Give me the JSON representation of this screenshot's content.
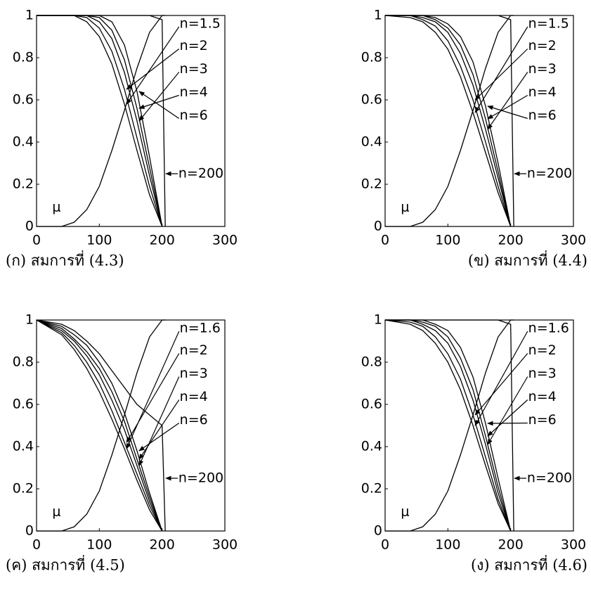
{
  "chart_data": [
    {
      "type": "line",
      "caption": "(ก) สมการที่ (4.3)",
      "xlim": [
        0,
        300
      ],
      "ylim": [
        0,
        1
      ],
      "xticks": [
        0,
        100,
        200,
        300
      ],
      "yticks": [
        0,
        0.2,
        0.4,
        0.6,
        0.8,
        1
      ],
      "x": [
        0,
        40,
        60,
        80,
        100,
        120,
        140,
        160,
        180,
        200,
        205
      ],
      "series": [
        {
          "name": "n=1.5",
          "color": "#000000",
          "values": [
            1,
            1,
            1,
            0.97,
            0.9,
            0.77,
            0.58,
            0.36,
            0.15,
            0,
            null
          ]
        },
        {
          "name": "n=2",
          "color": "#000000",
          "values": [
            1,
            1,
            1,
            0.99,
            0.94,
            0.83,
            0.65,
            0.42,
            0.19,
            0,
            null
          ]
        },
        {
          "name": "n=3",
          "color": "#000000",
          "values": [
            1,
            1,
            1,
            1,
            0.97,
            0.89,
            0.73,
            0.5,
            0.24,
            0,
            null
          ]
        },
        {
          "name": "n=4",
          "color": "#000000",
          "values": [
            1,
            1,
            1,
            1,
            0.99,
            0.93,
            0.79,
            0.56,
            0.28,
            0,
            null
          ]
        },
        {
          "name": "n=6",
          "color": "#000000",
          "values": [
            1,
            1,
            1,
            1,
            1,
            0.97,
            0.86,
            0.64,
            0.33,
            0,
            null
          ]
        },
        {
          "name": "n=200",
          "color": "#000000",
          "values": [
            1,
            1,
            1,
            1,
            1,
            1,
            1,
            1,
            1,
            0.98,
            0
          ]
        },
        {
          "name": "μ",
          "color": "#000000",
          "values": [
            0,
            0,
            0.02,
            0.08,
            0.19,
            0.36,
            0.55,
            0.75,
            0.92,
            1,
            1
          ]
        }
      ]
    },
    {
      "type": "line",
      "caption": "(ข) สมการที่ (4.4)",
      "xlim": [
        0,
        300
      ],
      "ylim": [
        0,
        1
      ],
      "xticks": [
        0,
        100,
        200,
        300
      ],
      "yticks": [
        0,
        0.2,
        0.4,
        0.6,
        0.8,
        1
      ],
      "x": [
        0,
        40,
        60,
        80,
        100,
        120,
        140,
        160,
        180,
        200,
        205
      ],
      "series": [
        {
          "name": "n=1.5",
          "color": "#000000",
          "values": [
            1,
            0.99,
            0.97,
            0.92,
            0.84,
            0.71,
            0.54,
            0.35,
            0.16,
            0,
            null
          ]
        },
        {
          "name": "n=2",
          "color": "#000000",
          "values": [
            1,
            1,
            0.98,
            0.95,
            0.88,
            0.76,
            0.6,
            0.4,
            0.19,
            0,
            null
          ]
        },
        {
          "name": "n=3",
          "color": "#000000",
          "values": [
            1,
            1,
            0.99,
            0.97,
            0.92,
            0.82,
            0.67,
            0.46,
            0.23,
            0,
            null
          ]
        },
        {
          "name": "n=4",
          "color": "#000000",
          "values": [
            1,
            1,
            1,
            0.98,
            0.94,
            0.86,
            0.72,
            0.51,
            0.26,
            0,
            null
          ]
        },
        {
          "name": "n=6",
          "color": "#000000",
          "values": [
            1,
            1,
            1,
            0.99,
            0.96,
            0.9,
            0.78,
            0.57,
            0.3,
            0,
            null
          ]
        },
        {
          "name": "n=200",
          "color": "#000000",
          "values": [
            1,
            1,
            1,
            1,
            1,
            1,
            1,
            1,
            1,
            0.98,
            0
          ]
        },
        {
          "name": "μ",
          "color": "#000000",
          "values": [
            0,
            0,
            0.02,
            0.08,
            0.19,
            0.36,
            0.55,
            0.75,
            0.92,
            1,
            1
          ]
        }
      ]
    },
    {
      "type": "line",
      "caption": "(ค) สมการที่ (4.5)",
      "xlim": [
        0,
        300
      ],
      "ylim": [
        0,
        1
      ],
      "xticks": [
        0,
        100,
        200,
        300
      ],
      "yticks": [
        0,
        0.2,
        0.4,
        0.6,
        0.8,
        1
      ],
      "x": [
        0,
        40,
        60,
        80,
        100,
        120,
        140,
        160,
        180,
        200,
        205
      ],
      "series": [
        {
          "name": "n=1.6",
          "color": "#000000",
          "values": [
            1,
            0.93,
            0.86,
            0.77,
            0.66,
            0.53,
            0.39,
            0.24,
            0.1,
            0,
            null
          ]
        },
        {
          "name": "n=2",
          "color": "#000000",
          "values": [
            1,
            0.94,
            0.88,
            0.8,
            0.7,
            0.57,
            0.42,
            0.27,
            0.12,
            0,
            null
          ]
        },
        {
          "name": "n=3",
          "color": "#000000",
          "values": [
            1,
            0.95,
            0.9,
            0.83,
            0.74,
            0.62,
            0.48,
            0.31,
            0.14,
            0,
            null
          ]
        },
        {
          "name": "n=4",
          "color": "#000000",
          "values": [
            1,
            0.96,
            0.91,
            0.85,
            0.77,
            0.66,
            0.52,
            0.34,
            0.16,
            0,
            null
          ]
        },
        {
          "name": "n=6",
          "color": "#000000",
          "values": [
            1,
            0.97,
            0.93,
            0.88,
            0.8,
            0.7,
            0.56,
            0.38,
            0.18,
            0,
            null
          ]
        },
        {
          "name": "n=200",
          "color": "#000000",
          "values": [
            1,
            0.98,
            0.95,
            0.9,
            0.84,
            0.76,
            0.68,
            0.6,
            0.55,
            0.5,
            0
          ]
        },
        {
          "name": "μ",
          "color": "#000000",
          "values": [
            0,
            0,
            0.02,
            0.08,
            0.19,
            0.36,
            0.55,
            0.75,
            0.92,
            1,
            1
          ]
        }
      ]
    },
    {
      "type": "line",
      "caption": "(ง) สมการที่ (4.6)",
      "xlim": [
        0,
        300
      ],
      "ylim": [
        0,
        1
      ],
      "xticks": [
        0,
        100,
        200,
        300
      ],
      "yticks": [
        0,
        0.2,
        0.4,
        0.6,
        0.8,
        1
      ],
      "x": [
        0,
        40,
        60,
        80,
        100,
        120,
        140,
        160,
        180,
        200,
        205
      ],
      "series": [
        {
          "name": "n=1.6",
          "color": "#000000",
          "values": [
            1,
            0.98,
            0.95,
            0.89,
            0.8,
            0.67,
            0.5,
            0.31,
            0.13,
            0,
            null
          ]
        },
        {
          "name": "n=2",
          "color": "#000000",
          "values": [
            1,
            0.99,
            0.97,
            0.92,
            0.84,
            0.72,
            0.55,
            0.35,
            0.15,
            0,
            null
          ]
        },
        {
          "name": "n=3",
          "color": "#000000",
          "values": [
            1,
            1,
            0.98,
            0.95,
            0.89,
            0.78,
            0.62,
            0.41,
            0.18,
            0,
            null
          ]
        },
        {
          "name": "n=4",
          "color": "#000000",
          "values": [
            1,
            1,
            0.99,
            0.97,
            0.92,
            0.82,
            0.67,
            0.45,
            0.21,
            0,
            null
          ]
        },
        {
          "name": "n=6",
          "color": "#000000",
          "values": [
            1,
            1,
            1,
            0.98,
            0.95,
            0.87,
            0.73,
            0.51,
            0.25,
            0,
            null
          ]
        },
        {
          "name": "n=200",
          "color": "#000000",
          "values": [
            1,
            1,
            1,
            1,
            1,
            1,
            1,
            1,
            1,
            0.98,
            0
          ]
        },
        {
          "name": "μ",
          "color": "#000000",
          "values": [
            0,
            0,
            0.02,
            0.08,
            0.19,
            0.36,
            0.55,
            0.75,
            0.92,
            1,
            1
          ]
        }
      ]
    }
  ]
}
